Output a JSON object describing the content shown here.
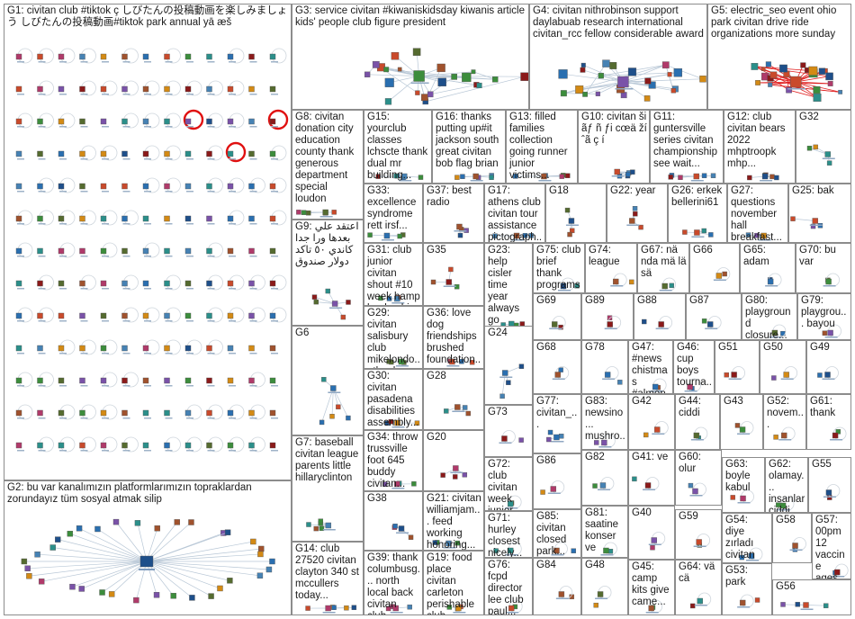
{
  "groups": [
    {
      "id": "G1",
      "label": "G1: civitan club #tiktok ç しびたんの投稿動画を楽しみましょう しびたんの投稿動画#tiktok park annual yā æš"
    },
    {
      "id": "G2",
      "label": "G2: bu var kanalımızın platformlarımızın topraklardan zorundayız tüm sosyal atmak silip"
    },
    {
      "id": "G3",
      "label": "G3: service civitan #kiwaniskidsday kiwanis article kids' people club figure president"
    },
    {
      "id": "G4",
      "label": "G4: civitan nithrobinson support daylabuab research international civitan_rcc fellow considerable award"
    },
    {
      "id": "G5",
      "label": "G5: electric_seo event ohio park civitan drive ride organizations more sunday"
    },
    {
      "id": "G8",
      "label": "G8: civitan donation city education county thank generous department special loudon"
    },
    {
      "id": "G15",
      "label": "G15: yourclub classes lchscte thank dual mr building..."
    },
    {
      "id": "G16",
      "label": "G16: thanks putting up#it jackson south great civitan bob flag brian"
    },
    {
      "id": "G13",
      "label": "G13: filled families collection going runner junior victims..."
    },
    {
      "id": "G10",
      "label": "G10: civitan ši ãƒ ñ ƒi cœä ží ˆã ç í"
    },
    {
      "id": "G11",
      "label": "G11: guntersville series civitan championship see wait..."
    },
    {
      "id": "G12",
      "label": "G12: club civitan bears 2022 mhptroopk mhp..."
    },
    {
      "id": "G32",
      "label": "G32"
    },
    {
      "id": "G33",
      "label": "G33: excellence syndrome rett irsf..."
    },
    {
      "id": "G37",
      "label": "G37: best radio"
    },
    {
      "id": "G17",
      "label": "G17: athens club civitan tour assistance pictograph..."
    },
    {
      "id": "G18",
      "label": "G18"
    },
    {
      "id": "G22",
      "label": "G22: year"
    },
    {
      "id": "G26",
      "label": "G26: erkek bellerini61"
    },
    {
      "id": "G27",
      "label": "G27: questions november hall breakfast..."
    },
    {
      "id": "G25",
      "label": "G25: bak"
    },
    {
      "id": "G9",
      "label": "G9: اعتقد علي بعدها ورا جدا كاندي ٥٠ تاكد دولار صندوق"
    },
    {
      "id": "G31",
      "label": "G31: club junior civitan shout #10 week hamp leadership..."
    },
    {
      "id": "G35",
      "label": "G35"
    },
    {
      "id": "G23",
      "label": "G23: help cisler time year always go happy check..."
    },
    {
      "id": "G75",
      "label": "G75: club brief thank programs..."
    },
    {
      "id": "G74",
      "label": "G74: league"
    },
    {
      "id": "G67",
      "label": "G67: nä nda mä lä sä"
    },
    {
      "id": "G66",
      "label": "G66"
    },
    {
      "id": "G65",
      "label": "G65: adam"
    },
    {
      "id": "G70",
      "label": "G70: bu var"
    },
    {
      "id": "G69",
      "label": "G69"
    },
    {
      "id": "G89",
      "label": "G89"
    },
    {
      "id": "G88",
      "label": "G88"
    },
    {
      "id": "G87",
      "label": "G87"
    },
    {
      "id": "G80",
      "label": "G80: playground closure..."
    },
    {
      "id": "G79",
      "label": "G79: playgrou... bayou"
    },
    {
      "id": "G6",
      "label": "G6"
    },
    {
      "id": "G29",
      "label": "G29: civitan salisbury club mikelondo... thank ve..."
    },
    {
      "id": "G36",
      "label": "G36: love dog friendships brushed foundation..."
    },
    {
      "id": "G24",
      "label": "G24"
    },
    {
      "id": "G68",
      "label": "G68"
    },
    {
      "id": "G78",
      "label": "G78"
    },
    {
      "id": "G47",
      "label": "G47: #news chistmas #almon..."
    },
    {
      "id": "G46",
      "label": "G46: cup boys tourna... great..."
    },
    {
      "id": "G51",
      "label": "G51"
    },
    {
      "id": "G50",
      "label": "G50"
    },
    {
      "id": "G49",
      "label": "G49"
    },
    {
      "id": "G30",
      "label": "G30: civitan pasadena disabilities assembly..."
    },
    {
      "id": "G28",
      "label": "G28"
    },
    {
      "id": "G73",
      "label": "G73"
    },
    {
      "id": "G77",
      "label": "G77: civitan_..."
    },
    {
      "id": "G83",
      "label": "G83: newsino... mushro... purchas..."
    },
    {
      "id": "G42",
      "label": "G42"
    },
    {
      "id": "G44",
      "label": "G44: ciddi"
    },
    {
      "id": "G43",
      "label": "G43"
    },
    {
      "id": "G52",
      "label": "G52: novem..."
    },
    {
      "id": "G61",
      "label": "G61: thank"
    },
    {
      "id": "G7",
      "label": "G7: baseball civitan league parents little hillaryclinton"
    },
    {
      "id": "G34",
      "label": "G34: throw trussville foot 645 buddy civitan..."
    },
    {
      "id": "G20",
      "label": "G20"
    },
    {
      "id": "G72",
      "label": "G72: club civitan week junior"
    },
    {
      "id": "G86",
      "label": "G86"
    },
    {
      "id": "G82",
      "label": "G82"
    },
    {
      "id": "G41",
      "label": "G41: ve"
    },
    {
      "id": "G60",
      "label": "G60: olur"
    },
    {
      "id": "G63",
      "label": "G63: boyle kabul"
    },
    {
      "id": "G62",
      "label": "G62: olamay... insanlar ciddi..."
    },
    {
      "id": "G55",
      "label": "G55"
    },
    {
      "id": "G38",
      "label": "G38"
    },
    {
      "id": "G21",
      "label": "G21: civitan williamjam... feed working honoring..."
    },
    {
      "id": "G71",
      "label": "G71: hurley closest nicely..."
    },
    {
      "id": "G85",
      "label": "G85: civitan closed park..."
    },
    {
      "id": "G81",
      "label": "G81: saatine konser ve"
    },
    {
      "id": "G40",
      "label": "G40"
    },
    {
      "id": "G59",
      "label": "G59"
    },
    {
      "id": "G54",
      "label": "G54: diye zırladı civitan"
    },
    {
      "id": "G58",
      "label": "G58"
    },
    {
      "id": "G57",
      "label": "G57: 00pm 12 vaccine ages..."
    },
    {
      "id": "G14",
      "label": "G14: club 27520 civitan clayton 340 st mccullers today..."
    },
    {
      "id": "G39",
      "label": "G39: thank columbusg... north local back civitan club..."
    },
    {
      "id": "G19",
      "label": "G19: food place civitan carleton perishable club district..."
    },
    {
      "id": "G76",
      "label": "G76: fcpd director lee club paul..."
    },
    {
      "id": "G84",
      "label": "G84"
    },
    {
      "id": "G48",
      "label": "G48"
    },
    {
      "id": "G45",
      "label": "G45: camp kits give came..."
    },
    {
      "id": "G64",
      "label": "G64: vä cä"
    },
    {
      "id": "G53",
      "label": "G53: park"
    },
    {
      "id": "G56",
      "label": "G56"
    }
  ],
  "colors": {
    "border": "#8c8c8c",
    "edge": "#b8c7d6",
    "edge_highlight": "#e02020",
    "label": "#1a1a1a",
    "node_label": "#3a5a8a"
  }
}
